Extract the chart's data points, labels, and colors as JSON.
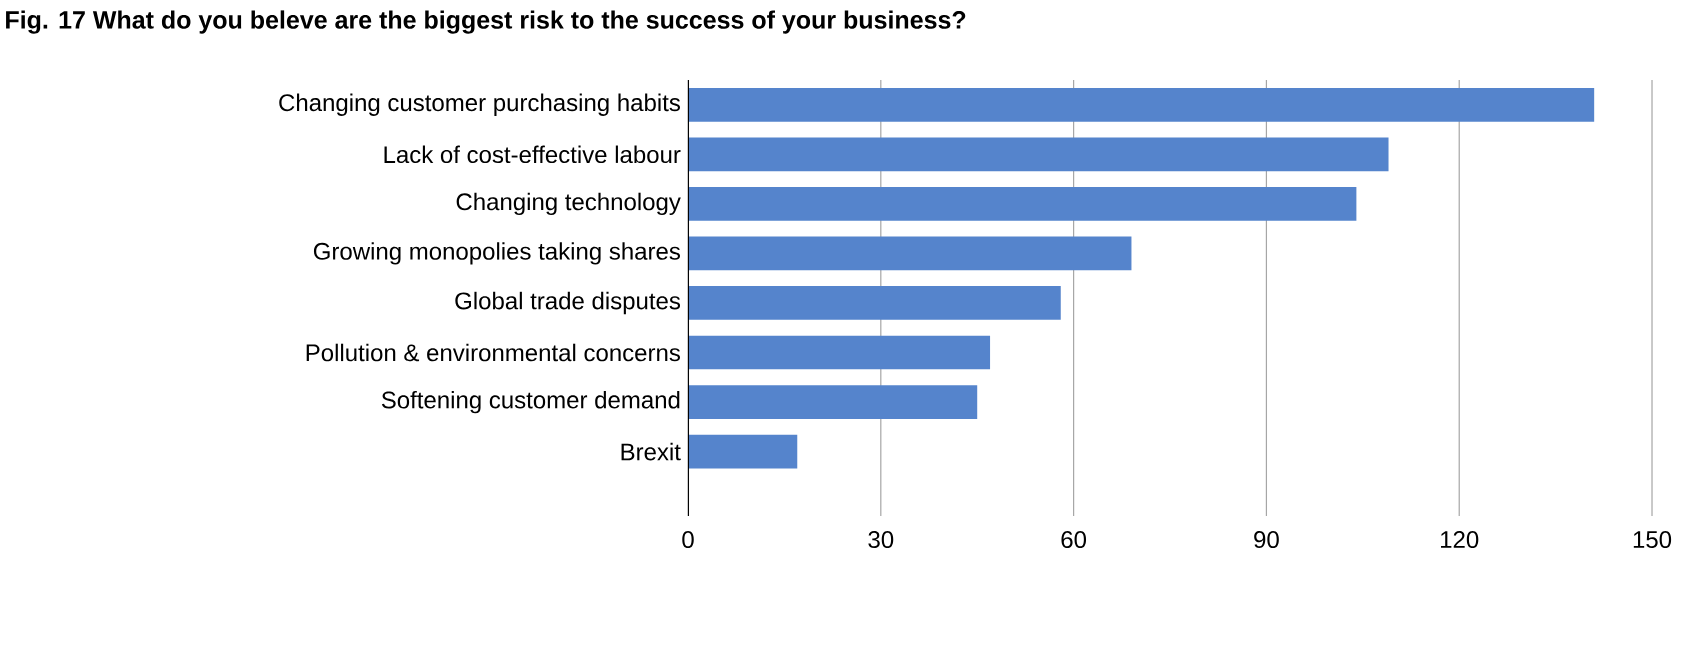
{
  "chart_data": {
    "type": "bar",
    "orientation": "horizontal",
    "title": "Fig. 17 What do you beleve are the biggest risk to the success of your business?",
    "categories": [
      "Changing customer purchasing habits",
      "Lack of cost-effective labour",
      "Changing technology",
      "Growing monopolies taking shares",
      "Global trade disputes",
      "Pollution & environmental concerns",
      "Softening customer demand",
      "Brexit"
    ],
    "values": [
      141,
      109,
      104,
      69,
      58,
      47,
      45,
      17
    ],
    "color": "#5584cc",
    "xlim": [
      0,
      150
    ],
    "xticks": [
      0,
      30,
      60,
      90,
      120,
      150
    ],
    "grid": "x"
  }
}
